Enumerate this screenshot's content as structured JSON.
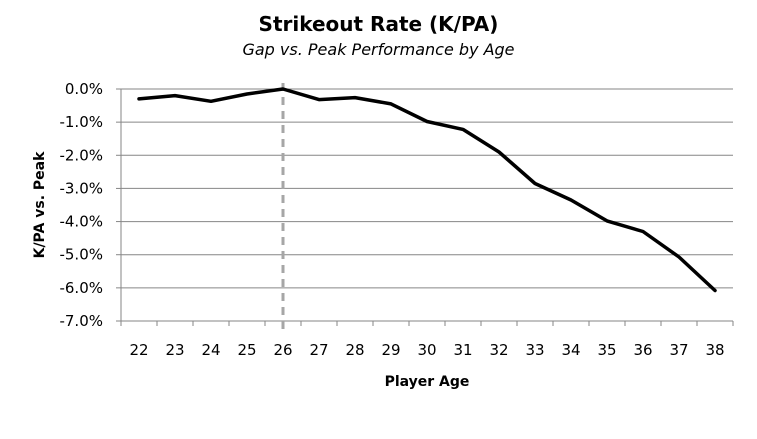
{
  "chart_data": {
    "type": "line",
    "title": "Strikeout Rate (K/PA)",
    "subtitle": "Gap vs. Peak Performance by Age",
    "xlabel": "Player Age",
    "ylabel": "K/PA vs. Peak",
    "categories": [
      "22",
      "23",
      "24",
      "25",
      "26",
      "27",
      "28",
      "29",
      "30",
      "31",
      "32",
      "33",
      "34",
      "35",
      "36",
      "37",
      "38"
    ],
    "values": [
      -0.3,
      -0.2,
      -0.37,
      -0.15,
      0.0,
      -0.32,
      -0.26,
      -0.45,
      -0.98,
      -1.22,
      -1.9,
      -2.85,
      -3.35,
      -3.98,
      -4.3,
      -5.07,
      -6.08
    ],
    "ylim": [
      -7.0,
      0.0
    ],
    "yticks": [
      0.0,
      -1.0,
      -2.0,
      -3.0,
      -4.0,
      -5.0,
      -6.0,
      -7.0
    ],
    "ytick_labels": [
      "0.0%",
      "-1.0%",
      "-2.0%",
      "-3.0%",
      "-4.0%",
      "-5.0%",
      "-6.0%",
      "-7.0%"
    ],
    "reference_line": {
      "x": "26",
      "style": "dashed"
    },
    "grid": true,
    "colors": {
      "line": "#000000",
      "grid": "#868686",
      "reference": "#a6a6a6"
    }
  }
}
